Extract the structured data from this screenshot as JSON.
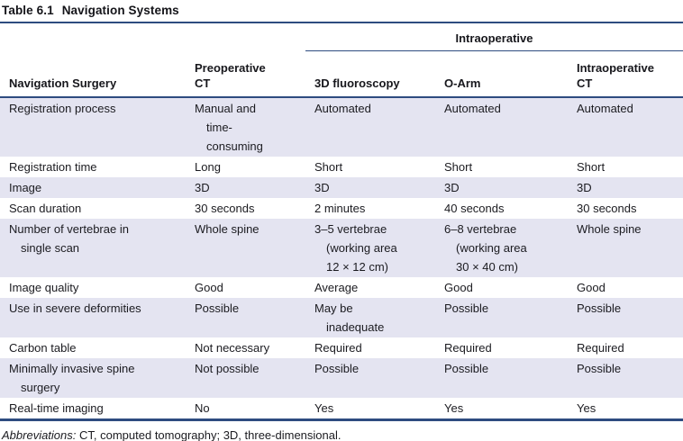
{
  "title": {
    "number": "Table 6.1",
    "text": "Navigation Systems"
  },
  "table": {
    "span_header": "Intraoperative",
    "columns": [
      "Navigation Surgery",
      "Preoperative\nCT",
      "3D fluoroscopy",
      "O-Arm",
      "Intraoperative\nCT"
    ],
    "rows": [
      {
        "cells": [
          "Registration process",
          "Manual and\ntime-\nconsuming",
          "Automated",
          "Automated",
          "Automated"
        ]
      },
      {
        "cells": [
          "Registration time",
          "Long",
          "Short",
          "Short",
          "Short"
        ]
      },
      {
        "cells": [
          "Image",
          "3D",
          "3D",
          "3D",
          "3D"
        ]
      },
      {
        "cells": [
          "Scan duration",
          "30 seconds",
          "2 minutes",
          "40 seconds",
          "30 seconds"
        ]
      },
      {
        "cells": [
          "Number of vertebrae in\nsingle scan",
          "Whole spine",
          "3–5 vertebrae\n(working area\n12 × 12 cm)",
          "6–8 vertebrae\n(working area\n30 × 40 cm)",
          "Whole spine"
        ]
      },
      {
        "cells": [
          "Image quality",
          "Good",
          "Average",
          "Good",
          "Good"
        ]
      },
      {
        "cells": [
          "Use in severe deformities",
          "Possible",
          "May be\ninadequate",
          "Possible",
          "Possible"
        ]
      },
      {
        "cells": [
          "Carbon table",
          "Not necessary",
          "Required",
          "Required",
          "Required"
        ]
      },
      {
        "cells": [
          "Minimally invasive spine\nsurgery",
          "Not possible",
          "Possible",
          "Possible",
          "Possible"
        ]
      },
      {
        "cells": [
          "Real-time imaging",
          "No",
          "Yes",
          "Yes",
          "Yes"
        ]
      }
    ]
  },
  "footnote": {
    "label": "Abbreviations:",
    "text": " CT, computed tomography; 3D, three-dimensional."
  },
  "colors": {
    "rule_navy": "#2e4c80",
    "row_shade": "#e4e4f1",
    "text": "#1b1b20"
  }
}
